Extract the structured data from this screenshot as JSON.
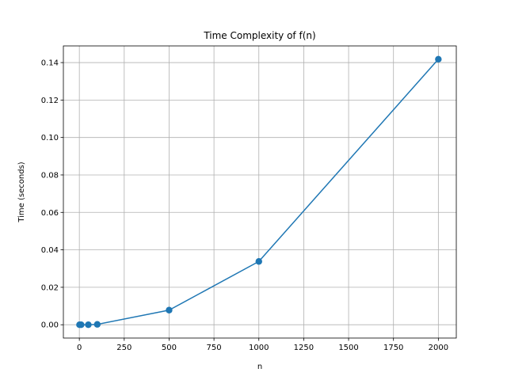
{
  "chart_data": {
    "type": "line",
    "title": "Time Complexity of f(n)",
    "xlabel": "n",
    "ylabel": "Time (seconds)",
    "x": [
      1,
      10,
      50,
      100,
      500,
      1000,
      2000
    ],
    "series": [
      {
        "values": [
          0.0,
          0.0,
          0.0,
          0.0002,
          0.0078,
          0.0338,
          0.1418
        ],
        "color": "#1f77b4",
        "marker": "circle"
      }
    ],
    "xlim": [
      -88.95,
      2099.95
    ],
    "ylim": [
      -0.0071,
      0.1489
    ],
    "xticks": [
      0,
      250,
      500,
      750,
      1000,
      1250,
      1500,
      1750,
      2000
    ],
    "xtick_labels": [
      "0",
      "250",
      "500",
      "750",
      "1000",
      "1250",
      "1500",
      "1750",
      "2000"
    ],
    "yticks": [
      0.0,
      0.02,
      0.04,
      0.06,
      0.08,
      0.1,
      0.12,
      0.14
    ],
    "ytick_labels": [
      "0.00",
      "0.02",
      "0.04",
      "0.06",
      "0.08",
      "0.10",
      "0.12",
      "0.14"
    ],
    "grid": true,
    "legend": "none"
  }
}
